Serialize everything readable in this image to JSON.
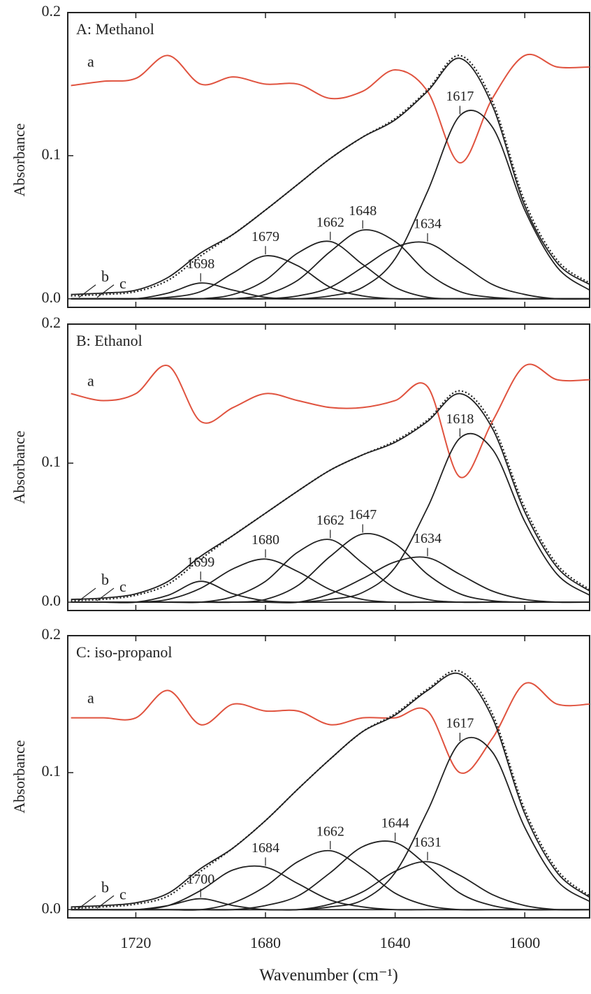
{
  "chart_data": [
    {
      "type": "line",
      "title": "A: Methanol",
      "ylabel": "Absorbance",
      "x": [
        1740,
        1730,
        1720,
        1710,
        1700,
        1690,
        1680,
        1670,
        1660,
        1650,
        1640,
        1630,
        1620,
        1610,
        1600,
        1590,
        1580
      ],
      "xlim": [
        1741,
        1580
      ],
      "xticks": [
        1720,
        1680,
        1640,
        1600
      ],
      "ylim": [
        -0.006,
        0.2
      ],
      "yticks": [
        {
          "value": 0,
          "label": "0.0"
        },
        0.1,
        0.2
      ],
      "series": [
        {
          "name": "a",
          "color": "#e0533f",
          "values": [
            0.149,
            0.152,
            0.154,
            0.17,
            0.15,
            0.155,
            0.15,
            0.15,
            0.14,
            0.145,
            0.16,
            0.145,
            0.095,
            0.14,
            0.17,
            0.162,
            0.162
          ]
        },
        {
          "name": "b",
          "color": "#222222",
          "values": [
            0.003,
            0.004,
            0.006,
            0.015,
            0.032,
            0.045,
            0.062,
            0.08,
            0.098,
            0.113,
            0.125,
            0.145,
            0.168,
            0.135,
            0.065,
            0.025,
            0.01
          ]
        },
        {
          "name": "c",
          "color": "#222222",
          "linestyle": "dotted",
          "values": [
            0.002,
            0.003,
            0.005,
            0.013,
            0.03,
            0.045,
            0.062,
            0.08,
            0.098,
            0.113,
            0.126,
            0.146,
            0.17,
            0.138,
            0.068,
            0.027,
            0.011
          ]
        },
        {
          "name": "1698",
          "color": "#222222",
          "values": [
            0,
            0,
            0,
            0.004,
            0.011,
            0.006,
            0.001,
            0,
            0,
            0,
            0,
            0,
            0,
            0,
            0,
            0,
            0
          ]
        },
        {
          "name": "1679",
          "color": "#222222",
          "values": [
            0,
            0,
            0,
            0.001,
            0.005,
            0.018,
            0.03,
            0.023,
            0.008,
            0.002,
            0,
            0,
            0,
            0,
            0,
            0,
            0
          ]
        },
        {
          "name": "1662",
          "color": "#222222",
          "values": [
            0,
            0,
            0,
            0,
            0,
            0.003,
            0.013,
            0.032,
            0.04,
            0.024,
            0.008,
            0.001,
            0,
            0,
            0,
            0,
            0
          ]
        },
        {
          "name": "1648",
          "color": "#222222",
          "values": [
            0,
            0,
            0,
            0,
            0,
            0,
            0.003,
            0.013,
            0.033,
            0.048,
            0.04,
            0.018,
            0.005,
            0.001,
            0,
            0,
            0
          ]
        },
        {
          "name": "1634",
          "color": "#222222",
          "values": [
            0,
            0,
            0,
            0,
            0,
            0,
            0,
            0.002,
            0.008,
            0.022,
            0.036,
            0.039,
            0.025,
            0.01,
            0.003,
            0,
            0
          ]
        },
        {
          "name": "1617",
          "color": "#222222",
          "values": [
            0,
            0,
            0,
            0,
            0,
            0,
            0,
            0,
            0.002,
            0.008,
            0.028,
            0.075,
            0.128,
            0.12,
            0.062,
            0.022,
            0.006
          ]
        }
      ]
    },
    {
      "type": "line",
      "title": "B: Ethanol",
      "ylabel": "Absorbance",
      "x": [
        1740,
        1730,
        1720,
        1710,
        1700,
        1690,
        1680,
        1670,
        1660,
        1650,
        1640,
        1630,
        1620,
        1610,
        1600,
        1590,
        1580
      ],
      "xlim": [
        1741,
        1580
      ],
      "xticks": [
        1720,
        1680,
        1640,
        1600
      ],
      "ylim": [
        -0.006,
        0.2
      ],
      "yticks": [
        {
          "value": 0,
          "label": "0.0"
        },
        0.1,
        0.2
      ],
      "series": [
        {
          "name": "a",
          "color": "#e0533f",
          "values": [
            0.15,
            0.145,
            0.15,
            0.17,
            0.13,
            0.14,
            0.15,
            0.145,
            0.14,
            0.14,
            0.145,
            0.155,
            0.09,
            0.13,
            0.17,
            0.16,
            0.16
          ]
        },
        {
          "name": "b",
          "color": "#222222",
          "values": [
            0.002,
            0.003,
            0.006,
            0.015,
            0.033,
            0.048,
            0.064,
            0.08,
            0.095,
            0.106,
            0.115,
            0.13,
            0.15,
            0.125,
            0.065,
            0.025,
            0.008
          ]
        },
        {
          "name": "c",
          "color": "#222222",
          "linestyle": "dotted",
          "values": [
            0.001,
            0.002,
            0.005,
            0.013,
            0.031,
            0.048,
            0.064,
            0.08,
            0.095,
            0.106,
            0.116,
            0.131,
            0.152,
            0.128,
            0.068,
            0.027,
            0.009
          ]
        },
        {
          "name": "1699",
          "color": "#222222",
          "values": [
            0,
            0,
            0,
            0.005,
            0.015,
            0.006,
            0.001,
            0,
            0,
            0,
            0,
            0,
            0,
            0,
            0,
            0,
            0
          ]
        },
        {
          "name": "1680",
          "color": "#222222",
          "values": [
            0,
            0,
            0,
            0.002,
            0.01,
            0.024,
            0.031,
            0.022,
            0.009,
            0.002,
            0,
            0,
            0,
            0,
            0,
            0,
            0
          ]
        },
        {
          "name": "1662",
          "color": "#222222",
          "values": [
            0,
            0,
            0,
            0,
            0,
            0.004,
            0.015,
            0.036,
            0.045,
            0.028,
            0.01,
            0.002,
            0,
            0,
            0,
            0,
            0
          ]
        },
        {
          "name": "1647",
          "color": "#222222",
          "values": [
            0,
            0,
            0,
            0,
            0,
            0,
            0.002,
            0.012,
            0.033,
            0.049,
            0.042,
            0.02,
            0.006,
            0.001,
            0,
            0,
            0
          ]
        },
        {
          "name": "1634",
          "color": "#222222",
          "values": [
            0,
            0,
            0,
            0,
            0,
            0,
            0,
            0,
            0.006,
            0.017,
            0.029,
            0.032,
            0.02,
            0.008,
            0.002,
            0,
            0
          ]
        },
        {
          "name": "1618",
          "color": "#222222",
          "values": [
            0,
            0,
            0,
            0,
            0,
            0,
            0,
            0,
            0.002,
            0.007,
            0.025,
            0.068,
            0.118,
            0.11,
            0.058,
            0.02,
            0.005
          ]
        }
      ]
    },
    {
      "type": "line",
      "title": "C: iso-propanol",
      "ylabel": "Absorbance",
      "xlabel": "Wavenumber (cm⁻¹)",
      "x": [
        1740,
        1730,
        1720,
        1710,
        1700,
        1690,
        1680,
        1670,
        1660,
        1650,
        1640,
        1630,
        1620,
        1610,
        1600,
        1590,
        1580
      ],
      "xlim": [
        1741,
        1580
      ],
      "xticks": [
        1720,
        1680,
        1640,
        1600
      ],
      "ylim": [
        -0.006,
        0.2
      ],
      "yticks": [
        {
          "value": 0,
          "label": "0.0"
        },
        0.1,
        0.2
      ],
      "series": [
        {
          "name": "a",
          "color": "#e0533f",
          "values": [
            0.14,
            0.14,
            0.14,
            0.16,
            0.135,
            0.15,
            0.145,
            0.145,
            0.135,
            0.14,
            0.14,
            0.145,
            0.1,
            0.125,
            0.165,
            0.15,
            0.15
          ]
        },
        {
          "name": "b",
          "color": "#222222",
          "values": [
            0.002,
            0.003,
            0.005,
            0.012,
            0.03,
            0.045,
            0.065,
            0.088,
            0.11,
            0.13,
            0.142,
            0.16,
            0.172,
            0.14,
            0.07,
            0.027,
            0.009
          ]
        },
        {
          "name": "c",
          "color": "#222222",
          "linestyle": "dotted",
          "values": [
            0.001,
            0.002,
            0.004,
            0.01,
            0.028,
            0.045,
            0.065,
            0.088,
            0.11,
            0.13,
            0.143,
            0.161,
            0.174,
            0.143,
            0.073,
            0.029,
            0.01
          ]
        },
        {
          "name": "1700",
          "color": "#222222",
          "values": [
            0,
            0,
            0,
            0.003,
            0.008,
            0.003,
            0,
            0,
            0,
            0,
            0,
            0,
            0,
            0,
            0,
            0,
            0
          ]
        },
        {
          "name": "1684",
          "color": "#222222",
          "values": [
            0,
            0,
            0,
            0.003,
            0.014,
            0.029,
            0.031,
            0.019,
            0.007,
            0.002,
            0,
            0,
            0,
            0,
            0,
            0,
            0
          ]
        },
        {
          "name": "1662",
          "color": "#222222",
          "values": [
            0,
            0,
            0,
            0,
            0,
            0.005,
            0.017,
            0.035,
            0.043,
            0.03,
            0.012,
            0.003,
            0,
            0,
            0,
            0,
            0
          ]
        },
        {
          "name": "1644",
          "color": "#222222",
          "values": [
            0,
            0,
            0,
            0,
            0,
            0,
            0.003,
            0.01,
            0.027,
            0.046,
            0.049,
            0.032,
            0.012,
            0.003,
            0,
            0,
            0
          ]
        },
        {
          "name": "1631",
          "color": "#222222",
          "values": [
            0,
            0,
            0,
            0,
            0,
            0,
            0,
            0,
            0.004,
            0.013,
            0.028,
            0.035,
            0.025,
            0.011,
            0.003,
            0,
            0
          ]
        },
        {
          "name": "1617",
          "color": "#222222",
          "values": [
            0,
            0,
            0,
            0,
            0,
            0,
            0,
            0,
            0.002,
            0.007,
            0.027,
            0.072,
            0.122,
            0.115,
            0.06,
            0.021,
            0.006
          ]
        }
      ]
    }
  ]
}
